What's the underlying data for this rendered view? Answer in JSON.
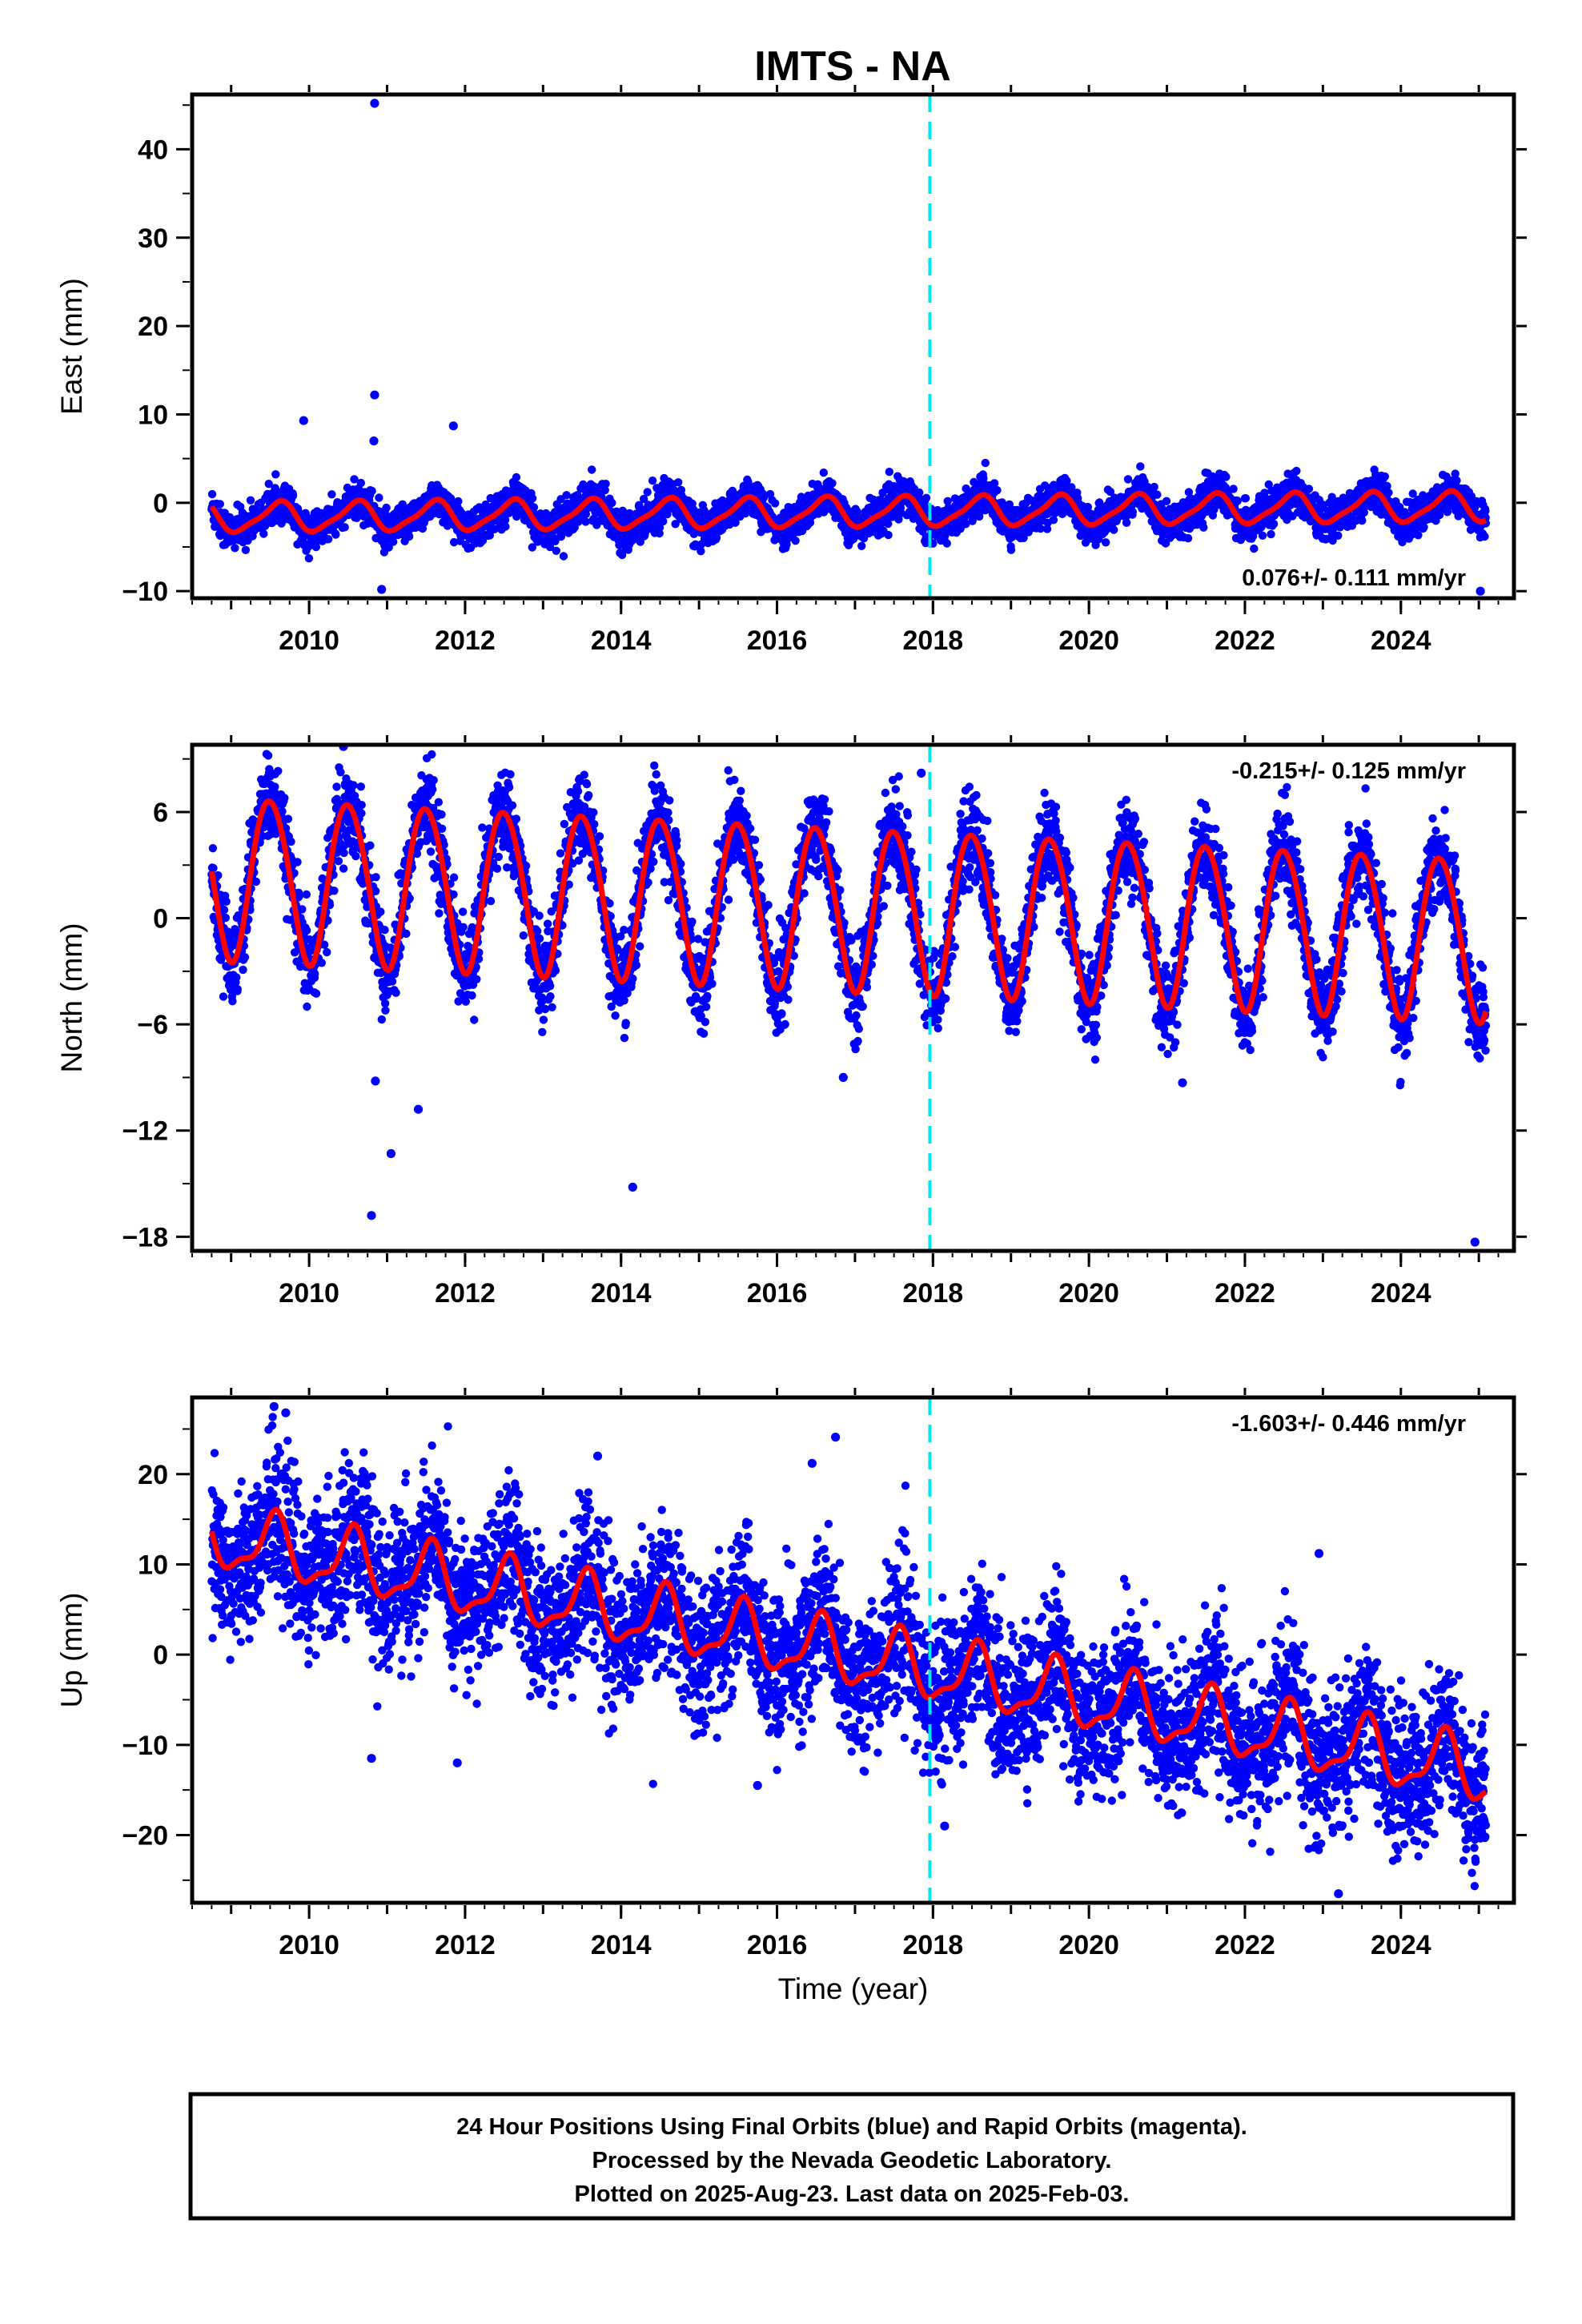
{
  "title": "IMTS - NA",
  "colors": {
    "final_orbits": "#0000ff",
    "model_fit": "#ff0000",
    "vertical_marker": "#00e5ee",
    "frame": "#000000"
  },
  "chart_data": [
    {
      "name": "east",
      "type": "scatter",
      "ylabel": "East (mm)",
      "xlabel": "",
      "xlim": [
        2008.5,
        2025.45
      ],
      "ylim": [
        -10.8,
        46.2
      ],
      "xticks": [
        2010,
        2012,
        2014,
        2016,
        2018,
        2020,
        2022,
        2024
      ],
      "xtick_labels": [
        "2010",
        "2012",
        "2014",
        "2016",
        "2018",
        "2020",
        "2022",
        "2024"
      ],
      "yticks": [
        -10,
        0,
        10,
        20,
        30,
        40
      ],
      "ytick_labels": [
        "−10",
        "0",
        "10",
        "20",
        "30",
        "40"
      ],
      "rate_label": "0.076+/- 0.111 mm/yr",
      "rate_position": "bottom-right",
      "marker_x": 2017.96,
      "data_start": 2008.75,
      "data_end": 2025.09,
      "model": {
        "offset_2008": -1.7,
        "trend": 0.076,
        "annual_amp": 1.6,
        "annual_peak": 0.6,
        "semiannual_amp": 0.4,
        "semiannual_peak": 0.2,
        "noise": 1.0,
        "n_points": 5200
      },
      "outliers": [
        {
          "x": 2010.84,
          "y": 45.2
        },
        {
          "x": 2010.84,
          "y": 12.2
        },
        {
          "x": 2009.93,
          "y": 9.3
        },
        {
          "x": 2011.85,
          "y": 8.7
        },
        {
          "x": 2010.83,
          "y": 7.0
        },
        {
          "x": 2010.93,
          "y": -9.8
        },
        {
          "x": 2025.02,
          "y": -10.0
        }
      ]
    },
    {
      "name": "north",
      "type": "scatter",
      "ylabel": "North (mm)",
      "xlabel": "",
      "xlim": [
        2008.5,
        2025.45
      ],
      "ylim": [
        -18.8,
        9.8
      ],
      "xticks": [
        2010,
        2012,
        2014,
        2016,
        2018,
        2020,
        2022,
        2024
      ],
      "xtick_labels": [
        "2010",
        "2012",
        "2014",
        "2016",
        "2018",
        "2020",
        "2022",
        "2024"
      ],
      "yticks": [
        -18,
        -12,
        -6,
        0,
        6
      ],
      "ytick_labels": [
        "−18",
        "−12",
        "−6",
        "0",
        "6"
      ],
      "rate_label": "-0.215+/- 0.125 mm/yr",
      "rate_position": "top-right",
      "marker_x": 2017.96,
      "data_start": 2008.75,
      "data_end": 2025.09,
      "model": {
        "offset_2008": 2.4,
        "trend": -0.215,
        "annual_amp": 4.6,
        "annual_peak": 0.5,
        "semiannual_amp": 0.3,
        "semiannual_peak": 0.3,
        "noise": 1.2,
        "n_points": 5200
      },
      "outliers": [
        {
          "x": 2010.8,
          "y": -16.8
        },
        {
          "x": 2011.05,
          "y": -13.3
        },
        {
          "x": 2011.4,
          "y": -10.8
        },
        {
          "x": 2010.85,
          "y": -9.2
        },
        {
          "x": 2014.15,
          "y": -15.2
        },
        {
          "x": 2016.85,
          "y": -9.0
        },
        {
          "x": 2021.2,
          "y": -9.3
        },
        {
          "x": 2024.95,
          "y": -18.3
        },
        {
          "x": 2010.44,
          "y": 9.7
        },
        {
          "x": 2017.85,
          "y": 8.2
        }
      ]
    },
    {
      "name": "up",
      "type": "scatter",
      "ylabel": "Up (mm)",
      "xlabel": "Time (year)",
      "xlim": [
        2008.5,
        2025.45
      ],
      "ylim": [
        -27.5,
        28.5
      ],
      "xticks": [
        2010,
        2012,
        2014,
        2016,
        2018,
        2020,
        2022,
        2024
      ],
      "xtick_labels": [
        "2010",
        "2012",
        "2014",
        "2016",
        "2018",
        "2020",
        "2022",
        "2024"
      ],
      "yticks": [
        -20,
        -10,
        0,
        10,
        20
      ],
      "ytick_labels": [
        "−20",
        "−10",
        "0",
        "10",
        "20"
      ],
      "rate_label": "-1.603+/- 0.446 mm/yr",
      "rate_position": "top-right",
      "marker_x": 2017.96,
      "data_start": 2008.75,
      "data_end": 2025.09,
      "model": {
        "offset_2008": 13.0,
        "trend": -1.603,
        "annual_amp": 3.3,
        "annual_peak": 0.55,
        "semiannual_amp": 1.2,
        "semiannual_peak": 0.1,
        "noise": 4.0,
        "n_points": 5200
      },
      "outliers": [
        {
          "x": 2009.55,
          "y": 27.5
        },
        {
          "x": 2009.7,
          "y": 26.8
        },
        {
          "x": 2016.75,
          "y": 24.1
        },
        {
          "x": 2016.45,
          "y": 21.2
        },
        {
          "x": 2013.7,
          "y": 22.0
        },
        {
          "x": 2022.95,
          "y": 11.2
        },
        {
          "x": 2023.2,
          "y": -26.5
        },
        {
          "x": 2015.75,
          "y": -14.5
        },
        {
          "x": 2011.9,
          "y": -12.0
        },
        {
          "x": 2010.8,
          "y": -11.5
        },
        {
          "x": 2018.15,
          "y": -19.0
        }
      ]
    }
  ],
  "footer": {
    "line1": "24 Hour Positions Using Final Orbits (blue) and Rapid Orbits (magenta).",
    "line2": "Processed by the Nevada Geodetic Laboratory.",
    "line3": "Plotted on 2025-Aug-23. Last data on 2025-Feb-03."
  }
}
